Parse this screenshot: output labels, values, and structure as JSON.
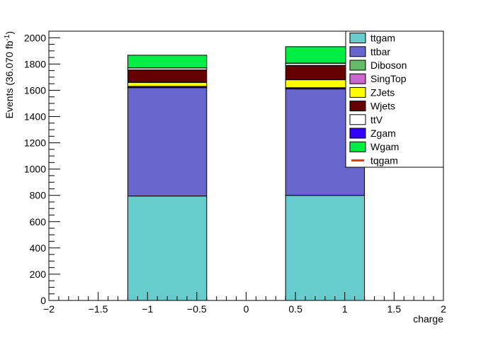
{
  "chart_data": {
    "type": "bar",
    "stacked": true,
    "title": "",
    "xlabel": "charge",
    "ylabel_main": "Events (36.070 fb",
    "ylabel_sup": "-1",
    "ylabel_end": ")",
    "xlim": [
      -2,
      2
    ],
    "ylim": [
      0,
      2050
    ],
    "x_ticks": [
      -2,
      -1.5,
      -1,
      -0.5,
      0,
      0.5,
      1,
      1.5,
      2
    ],
    "x_tick_labels": [
      "−2",
      "−1.5",
      "−1",
      "−0.5",
      "0",
      "0.5",
      "1",
      "1.5",
      "2"
    ],
    "y_ticks": [
      0,
      200,
      400,
      600,
      800,
      1000,
      1200,
      1400,
      1600,
      1800,
      2000
    ],
    "y_tick_labels": [
      "0",
      "200",
      "400",
      "600",
      "800",
      "1000",
      "1200",
      "1400",
      "1600",
      "1800",
      "2000"
    ],
    "grid": false,
    "legend_position": "top-right",
    "bins": [
      {
        "x_low": -1.2,
        "x_high": -0.4
      },
      {
        "x_low": 0.4,
        "x_high": 1.2
      }
    ],
    "series": [
      {
        "name": "ttgam",
        "color": "#66cccc",
        "values": [
          795,
          800
        ],
        "marker": "box"
      },
      {
        "name": "ttbar",
        "color": "#6666cc",
        "values": [
          825,
          810
        ],
        "marker": "box"
      },
      {
        "name": "Diboson",
        "color": "#66bb66",
        "values": [
          3,
          3
        ],
        "marker": "box"
      },
      {
        "name": "SingTop",
        "color": "#cc66cc",
        "values": [
          7,
          7
        ],
        "marker": "box"
      },
      {
        "name": "ZJets",
        "color": "#ffff00",
        "values": [
          30,
          60
        ],
        "marker": "box"
      },
      {
        "name": "Wjets",
        "color": "#660000",
        "values": [
          95,
          110
        ],
        "marker": "box"
      },
      {
        "name": "ttV",
        "color": "#ffffff",
        "values": [
          15,
          15
        ],
        "marker": "box"
      },
      {
        "name": "Zgam",
        "color": "#3300ff",
        "values": [
          2,
          2
        ],
        "marker": "box"
      },
      {
        "name": "Wgam",
        "color": "#00ee44",
        "values": [
          95,
          125
        ],
        "marker": "box"
      },
      {
        "name": "tqgam",
        "color": "#ee3311",
        "values": [
          0,
          0
        ],
        "marker": "line"
      }
    ]
  }
}
